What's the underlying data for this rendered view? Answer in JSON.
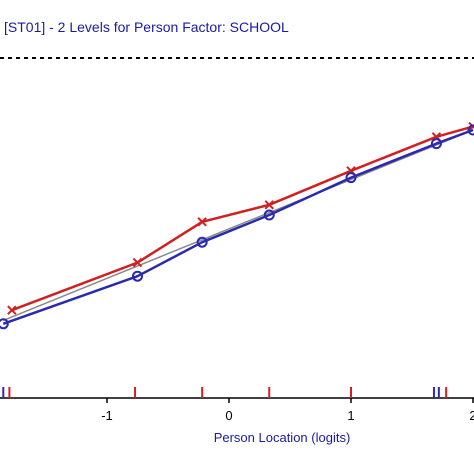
{
  "chart_data": {
    "type": "line",
    "title": "[ST01] - 2 Levels for Person Factor: SCHOOL",
    "xlabel": "Person Location (logits)",
    "ylabel": "",
    "x_ticks": [
      -1,
      0,
      1,
      2
    ],
    "x_tick_labels": [
      "-1",
      "0",
      "1",
      "2"
    ],
    "xlim": [
      -1.85,
      2.0
    ],
    "ylim": [
      0.0,
      1.0
    ],
    "grid": false,
    "legend": "none",
    "reference_line": {
      "style": "dashed",
      "y": 0.97
    },
    "series": [
      {
        "color": "#d02020",
        "marker": "x",
        "x": [
          -1.78,
          -0.75,
          -0.22,
          0.33,
          1.0,
          1.7,
          2.0
        ],
        "y": [
          0.27,
          0.41,
          0.53,
          0.58,
          0.68,
          0.78,
          0.81
        ]
      },
      {
        "color": "#2a2ab0",
        "marker": "o",
        "x": [
          -1.85,
          -0.75,
          -0.22,
          0.33,
          1.0,
          1.7,
          2.0
        ],
        "y": [
          0.23,
          0.37,
          0.47,
          0.55,
          0.66,
          0.76,
          0.8
        ]
      },
      {
        "color": "#8a8a8a",
        "marker": "none",
        "x": [
          -1.85,
          2.0
        ],
        "y": [
          0.24,
          0.8
        ]
      }
    ],
    "rug_marks": [
      {
        "color": "#2a2ab0",
        "x": -1.85
      },
      {
        "color": "#d02020",
        "x": -1.8
      },
      {
        "color": "#d02020",
        "x": -0.77
      },
      {
        "color": "#d02020",
        "x": -0.22
      },
      {
        "color": "#d02020",
        "x": 0.33
      },
      {
        "color": "#d02020",
        "x": 1.0
      },
      {
        "color": "#2a2ab0",
        "x": 1.68
      },
      {
        "color": "#2a2ab0",
        "x": 1.72
      },
      {
        "color": "#d02020",
        "x": 1.78
      }
    ]
  }
}
